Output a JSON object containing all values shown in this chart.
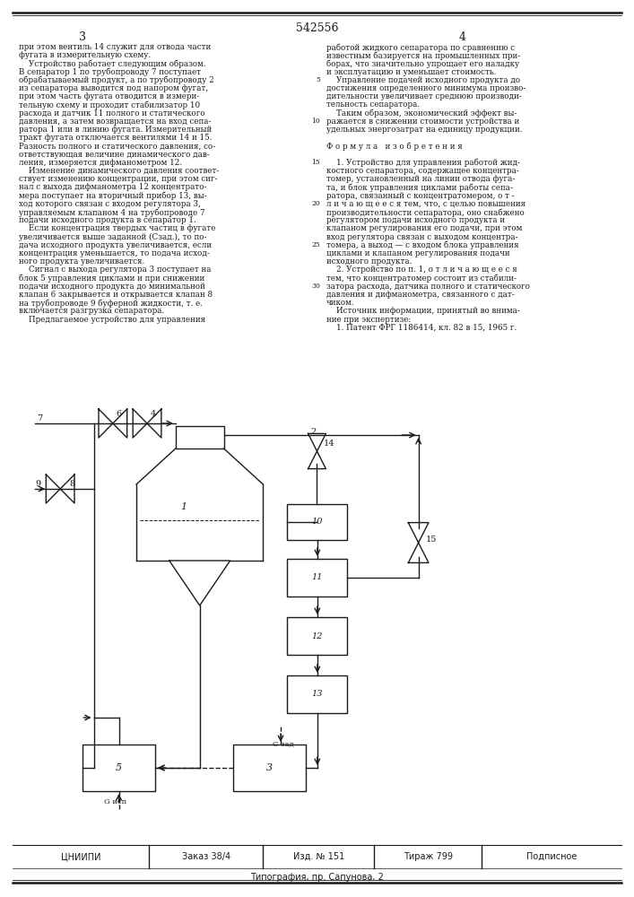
{
  "title": "542556",
  "page_left": "3",
  "page_right": "4",
  "background_color": "#ffffff",
  "line_color": "#1a1a1a",
  "text_color": "#1a1a1a",
  "figsize": [
    7.07,
    10.0
  ],
  "dpi": 100,
  "footer_col1": "ЦНИИПИ",
  "footer_col2": "Заказ 38/4",
  "footer_col3": "Изд. № 151",
  "footer_col4": "Тираж 799",
  "footer_col5": "Подписное",
  "footer_line2": "Типография, пр. Сапунова, 2",
  "left_col_lines": [
    "при этом вентиль 14 служит для отвода части",
    "фугата в измерительную схему.",
    "    Устройство работает следующим образом.",
    "В сепаратор 1 по трубопроводу 7 поступает",
    "обрабатываемый продукт, а по трубопроводу 2",
    "из сепаратора выводится под напором фугат,",
    "при этом часть фугата отводится в измери-",
    "тельную схему и проходит стабилизатор 10",
    "расхода и датчик 11 полного и статического",
    "давления, а затем возвращается на вход сепа-",
    "ратора 1 или в линию фугата. Измерительный",
    "тракт фугата отключается вентилями 14 и 15.",
    "Разность полного и статического давления, со-",
    "ответствующая величине динамического дав-",
    "ления, измеряется дифманометром 12.",
    "    Изменение динамического давления соответ-",
    "ствует изменению концентрации, при этом сиг-",
    "нал с выхода дифманометра 12 концентрато-",
    "мера поступает на вторичный прибор 13, вы-",
    "ход которого связан с входом регулятора 3,",
    "управляемым клапаном 4 на трубопроводе 7",
    "подачи исходного продукта в сепаратор 1.",
    "    Если концентрация твердых частиц в фугате",
    "увеличивается выше заданной (Сзад.), то по-",
    "дача исходного продукта увеличивается, если",
    "концентрация уменьшается, то подача исход-",
    "ного продукта увеличивается.",
    "    Сигнал с выхода регулятора 3 поступает на",
    "блок 5 управления циклами и при снижении",
    "подачи исходного продукта до минимальной",
    "клапан 6 закрывается и открывается клапан 8",
    "на трубопроводе 9 буферной жидкости, т. е.",
    "включается разгрузка сепаратора.",
    "    Предлагаемое устройство для управления"
  ],
  "right_col_lines": [
    "работой жидкого сепаратора по сравнению с",
    "известным базируется на промышленных при-",
    "борах, что значительно упрощает его наладку",
    "и эксплуатацию и уменьшает стоимость.",
    "    Управление подачей исходного продукта до",
    "достижения определенного минимума произво-",
    "дительности увеличивает среднюю производи-",
    "тельность сепаратора.",
    "    Таким образом, экономический эффект вы-",
    "ражается в снижении стоимости устройства и",
    "удельных энергозатрат на единицу продукции.",
    "",
    "Ф о р м у л а   и з о б р е т е н и я",
    "",
    "    1. Устройство для управления работой жид-",
    "костного сепаратора, содержащее концентра-",
    "томер, установленный на линии отвода фуга-",
    "та, и блок управления циклами работы сепа-",
    "ратора, связанный с концентратомером, о т -",
    "л и ч а ю щ е е с я тем, что, с целью повышения",
    "производительности сепаратора, оно снабжено",
    "регулятором подачи исходного продукта и",
    "клапаном регулирования его подачи, при этом",
    "вход регулятора связан с выходом концентра-",
    "томера, а выход — с входом блока управления",
    "циклами и клапаном регулирования подачи",
    "исходного продукта.",
    "    2. Устройство по п. 1, о т л и ч а ю щ е е с я",
    "тем, что концентратомер состоит из стабили-",
    "затора расхода, датчика полного и статического",
    "давления и дифманометра, связанного с дат-",
    "чиком.",
    "    Источник информации, принятый во внима-",
    "ние при экспертизе:",
    "    1. Патент ФРГ 1186414, кл. 82 в 15, 1965 г."
  ]
}
